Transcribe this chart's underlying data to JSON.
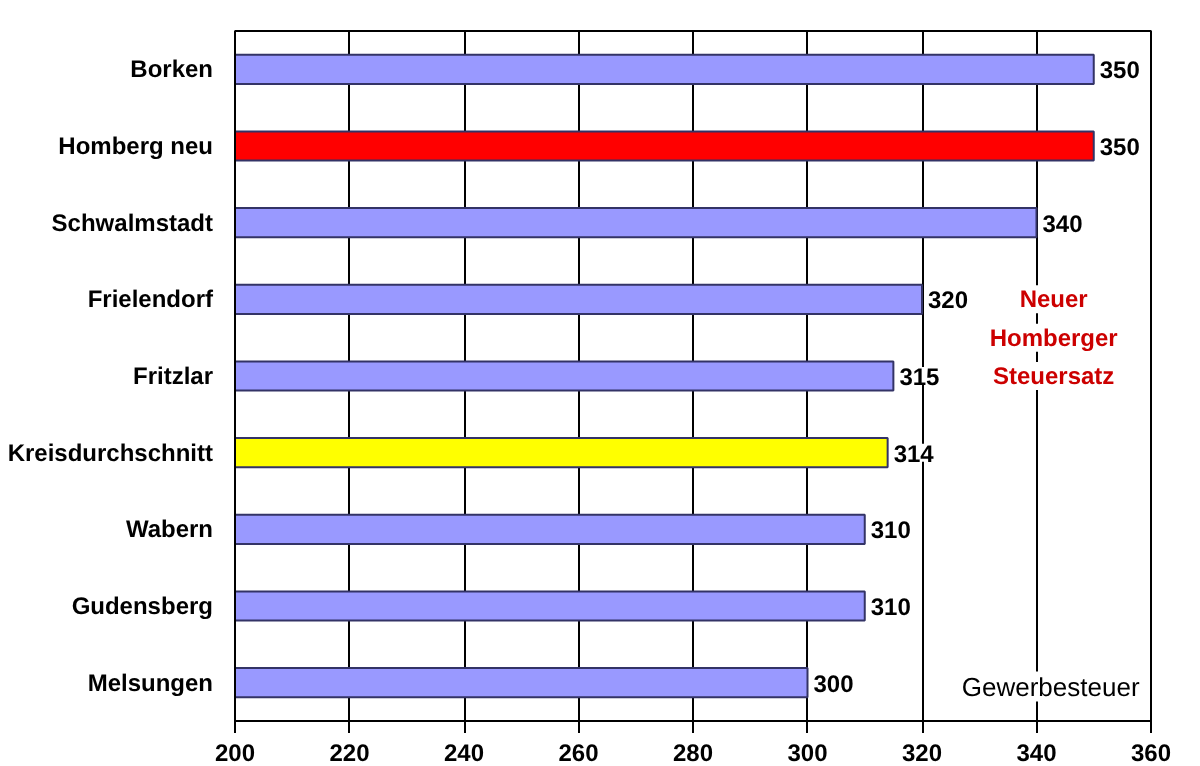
{
  "chart_data": {
    "type": "bar",
    "orientation": "horizontal",
    "categories": [
      "Borken",
      "Homberg neu",
      "Schwalmstadt",
      "Frielendorf",
      "Fritzlar",
      "Kreisdurchschnitt",
      "Wabern",
      "Gudensberg",
      "Melsungen"
    ],
    "values": [
      350,
      350,
      340,
      320,
      315,
      314,
      310,
      310,
      300
    ],
    "colors": [
      "#9999ff",
      "#ff0000",
      "#9999ff",
      "#9999ff",
      "#9999ff",
      "#ffff00",
      "#9999ff",
      "#9999ff",
      "#9999ff"
    ],
    "xlim": [
      200,
      360
    ],
    "xticks": [
      200,
      220,
      240,
      260,
      280,
      300,
      320,
      340,
      360
    ],
    "grid": "x",
    "data_labels": true,
    "annotations": [
      "Neuer Homberger Steuersatz",
      "Gewerbesteuer"
    ]
  }
}
